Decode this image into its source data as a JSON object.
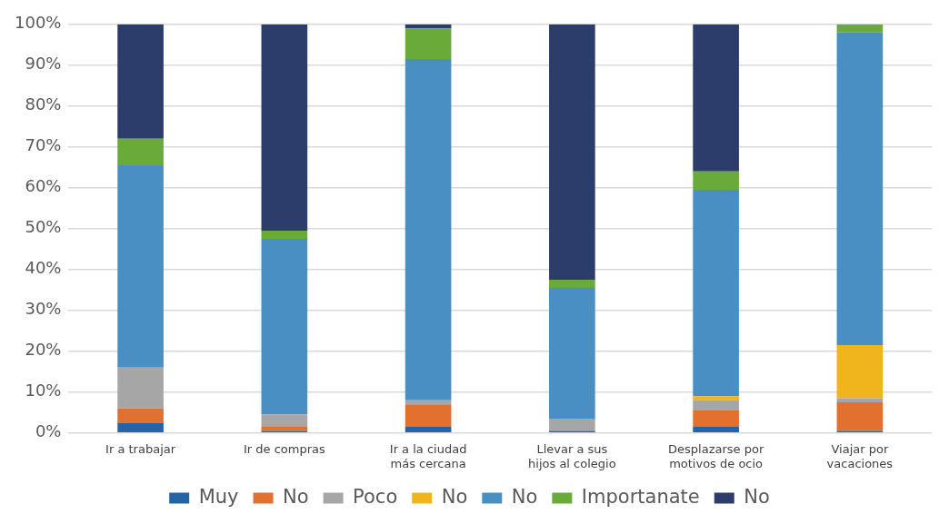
{
  "chart_data": {
    "type": "bar",
    "stacked": true,
    "categories": [
      "Ir a trabajar",
      "Ir de compras",
      "Ir a la ciudad más cercana",
      "Llevar a sus hijos al colegio",
      "Desplazarse por motivos de ocio",
      "Viajar por vacaciones"
    ],
    "series": [
      {
        "name": "Muy",
        "color": "#2563a8",
        "values": [
          2.5,
          0.5,
          1.5,
          0.5,
          1.5,
          0.5
        ]
      },
      {
        "name": "No",
        "color": "#e2702e",
        "values": [
          3.5,
          1,
          5.5,
          0,
          4,
          7
        ]
      },
      {
        "name": "Poco",
        "color": "#a6a6a6",
        "values": [
          10,
          3,
          1,
          3,
          2.5,
          1
        ]
      },
      {
        "name": "No",
        "color": "#f0b41c",
        "values": [
          0,
          0,
          0,
          0,
          1,
          13
        ]
      },
      {
        "name": "No",
        "color": "#4a8fc4",
        "values": [
          49.5,
          43,
          83.5,
          32,
          50.5,
          76.5
        ]
      },
      {
        "name": "Importanate",
        "color": "#6aaa3a",
        "values": [
          6.5,
          2,
          7.5,
          2,
          4.5,
          2
        ]
      },
      {
        "name": "No",
        "color": "#2c3d6b",
        "values": [
          28,
          50.5,
          1,
          62.5,
          36,
          0
        ]
      }
    ],
    "ylim": [
      0,
      100
    ],
    "yticks": [
      {
        "value": 0,
        "label": "0%"
      },
      {
        "value": 10,
        "label": "10%"
      },
      {
        "value": 20,
        "label": "20%"
      },
      {
        "value": 30,
        "label": "30%"
      },
      {
        "value": 40,
        "label": "40%"
      },
      {
        "value": 50,
        "label": "50%"
      },
      {
        "value": 60,
        "label": "60%"
      },
      {
        "value": 70,
        "label": "70%"
      },
      {
        "value": 80,
        "label": "80%"
      },
      {
        "value": 90,
        "label": "90%"
      },
      {
        "value": 100,
        "label": "100%"
      }
    ],
    "grid": "y",
    "legend": "bottom"
  }
}
